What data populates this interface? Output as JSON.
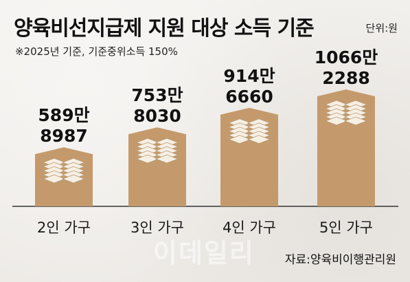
{
  "title": "양육비선지급제 지원 대상 소득 기준",
  "unit": "단위:원",
  "note": "※2025년 기준, 기준중위소득 150%",
  "source": "자료:양육비이행관리원",
  "watermark": "이데일리",
  "colors": {
    "bar": "#c49a6c",
    "bar_top": "#d6b088",
    "paper": "#f6efe4",
    "paper_edge": "#b89a74",
    "axis": "#333333"
  },
  "chart_data": {
    "type": "bar",
    "title": "양육비선지급제 지원 대상 소득 기준",
    "ylabel": "",
    "xlabel": "",
    "unit": "원",
    "categories": [
      "2인 가구",
      "3인 가구",
      "4인 가구",
      "5인 가구"
    ],
    "values": [
      5898987,
      7538030,
      9146660,
      10662288
    ],
    "value_labels": [
      [
        "589만",
        "8987"
      ],
      [
        "753만",
        "8030"
      ],
      [
        "914만",
        "6660"
      ],
      [
        "1066만",
        "2288"
      ]
    ]
  }
}
